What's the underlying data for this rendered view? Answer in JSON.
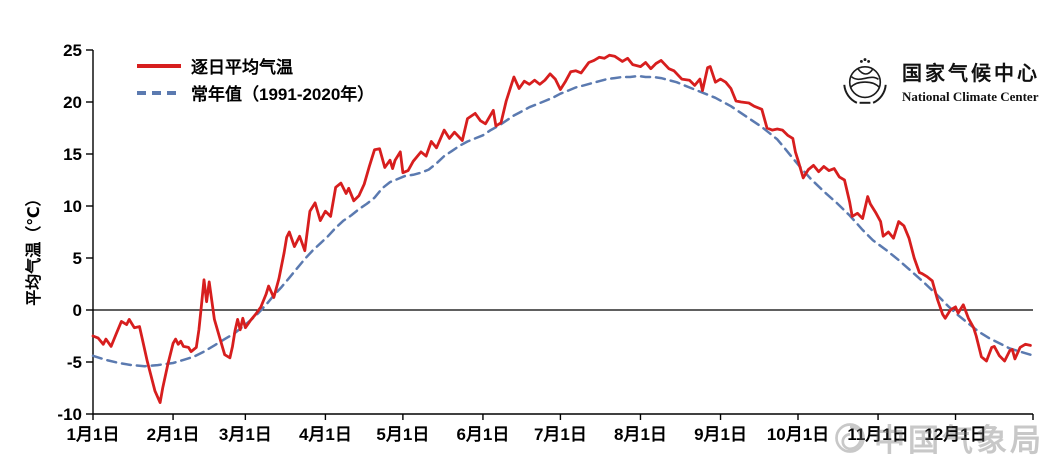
{
  "branding": {
    "name_cn": "国家气候中心",
    "name_en": "National Climate Center"
  },
  "watermark": {
    "text": "中国气象局"
  },
  "chart_data": {
    "type": "line",
    "title": "",
    "xlabel": "",
    "ylabel": "平均气温（℃）",
    "ylim": [
      -10,
      25
    ],
    "y_ticks": [
      25,
      20,
      15,
      10,
      5,
      0,
      -5,
      -10
    ],
    "x_tick_labels": [
      "1月1日",
      "2月1日",
      "3月1日",
      "4月1日",
      "5月1日",
      "6月1日",
      "7月1日",
      "8月1日",
      "9月1日",
      "10月1日",
      "11月1日",
      "12月1日"
    ],
    "x_tick_days": [
      0,
      31,
      59,
      90,
      120,
      151,
      181,
      212,
      243,
      273,
      304,
      334
    ],
    "x_range_days": [
      0,
      364
    ],
    "grid": false,
    "zero_line": true,
    "legend_position": "top-left",
    "series": [
      {
        "name": "逐日平均气温",
        "color": "#d71e1e",
        "line_style": "solid",
        "points": [
          [
            0,
            -2.5
          ],
          [
            2,
            -2.7
          ],
          [
            4,
            -3.3
          ],
          [
            5,
            -2.8
          ],
          [
            7,
            -3.5
          ],
          [
            9,
            -2.3
          ],
          [
            11,
            -1.1
          ],
          [
            13,
            -1.4
          ],
          [
            14,
            -0.9
          ],
          [
            16,
            -1.7
          ],
          [
            18,
            -1.6
          ],
          [
            19,
            -2.7
          ],
          [
            21,
            -4.9
          ],
          [
            24,
            -7.8
          ],
          [
            26,
            -8.9
          ],
          [
            27,
            -7.5
          ],
          [
            29,
            -5.2
          ],
          [
            31,
            -3.2
          ],
          [
            32,
            -2.8
          ],
          [
            33,
            -3.3
          ],
          [
            34,
            -3.0
          ],
          [
            35,
            -3.5
          ],
          [
            37,
            -3.6
          ],
          [
            38,
            -4.0
          ],
          [
            40,
            -3.6
          ],
          [
            41,
            -1.9
          ],
          [
            42,
            0.5
          ],
          [
            43,
            2.9
          ],
          [
            44,
            0.8
          ],
          [
            45,
            2.7
          ],
          [
            47,
            -0.9
          ],
          [
            49,
            -2.6
          ],
          [
            51,
            -4.3
          ],
          [
            53,
            -4.6
          ],
          [
            54,
            -3.5
          ],
          [
            55,
            -2.0
          ],
          [
            56,
            -0.9
          ],
          [
            57,
            -1.9
          ],
          [
            58,
            -0.8
          ],
          [
            59,
            -1.7
          ],
          [
            61,
            -1.0
          ],
          [
            63,
            -0.4
          ],
          [
            65,
            0.3
          ],
          [
            67,
            1.5
          ],
          [
            68,
            2.3
          ],
          [
            70,
            1.2
          ],
          [
            72,
            3.0
          ],
          [
            74,
            5.5
          ],
          [
            75,
            7.0
          ],
          [
            76,
            7.5
          ],
          [
            78,
            6.1
          ],
          [
            80,
            7.1
          ],
          [
            82,
            5.7
          ],
          [
            84,
            9.5
          ],
          [
            86,
            10.3
          ],
          [
            88,
            8.6
          ],
          [
            90,
            9.5
          ],
          [
            92,
            9.0
          ],
          [
            94,
            11.8
          ],
          [
            96,
            12.2
          ],
          [
            98,
            11.2
          ],
          [
            99,
            11.7
          ],
          [
            101,
            10.5
          ],
          [
            103,
            11.0
          ],
          [
            105,
            12.1
          ],
          [
            107,
            13.8
          ],
          [
            109,
            15.4
          ],
          [
            111,
            15.5
          ],
          [
            113,
            13.7
          ],
          [
            115,
            14.4
          ],
          [
            116,
            13.6
          ],
          [
            117,
            14.4
          ],
          [
            119,
            15.2
          ],
          [
            120,
            13.2
          ],
          [
            122,
            13.4
          ],
          [
            124,
            14.3
          ],
          [
            127,
            15.2
          ],
          [
            129,
            14.8
          ],
          [
            131,
            16.2
          ],
          [
            133,
            15.6
          ],
          [
            136,
            17.3
          ],
          [
            138,
            16.5
          ],
          [
            140,
            17.1
          ],
          [
            143,
            16.3
          ],
          [
            145,
            18.4
          ],
          [
            148,
            18.9
          ],
          [
            150,
            18.2
          ],
          [
            152,
            17.9
          ],
          [
            155,
            19.2
          ],
          [
            156,
            17.7
          ],
          [
            158,
            18.0
          ],
          [
            160,
            20.1
          ],
          [
            163,
            22.4
          ],
          [
            165,
            21.3
          ],
          [
            167,
            22.0
          ],
          [
            169,
            21.7
          ],
          [
            171,
            22.1
          ],
          [
            173,
            21.7
          ],
          [
            175,
            22.1
          ],
          [
            177,
            22.7
          ],
          [
            179,
            22.2
          ],
          [
            181,
            21.2
          ],
          [
            183,
            22.0
          ],
          [
            185,
            22.9
          ],
          [
            187,
            23.0
          ],
          [
            189,
            22.8
          ],
          [
            192,
            23.8
          ],
          [
            194,
            24.0
          ],
          [
            196,
            24.3
          ],
          [
            198,
            24.2
          ],
          [
            200,
            24.5
          ],
          [
            202,
            24.4
          ],
          [
            205,
            23.9
          ],
          [
            207,
            24.2
          ],
          [
            209,
            23.6
          ],
          [
            212,
            23.4
          ],
          [
            214,
            23.8
          ],
          [
            216,
            23.2
          ],
          [
            218,
            23.7
          ],
          [
            220,
            24.0
          ],
          [
            223,
            23.2
          ],
          [
            225,
            23.0
          ],
          [
            228,
            22.2
          ],
          [
            231,
            22.1
          ],
          [
            233,
            21.6
          ],
          [
            235,
            22.2
          ],
          [
            236,
            21.1
          ],
          [
            238,
            23.3
          ],
          [
            239,
            23.4
          ],
          [
            241,
            21.9
          ],
          [
            243,
            22.2
          ],
          [
            245,
            21.9
          ],
          [
            247,
            21.3
          ],
          [
            249,
            20.1
          ],
          [
            251,
            20.0
          ],
          [
            254,
            19.9
          ],
          [
            256,
            19.6
          ],
          [
            259,
            19.3
          ],
          [
            261,
            17.5
          ],
          [
            263,
            17.3
          ],
          [
            265,
            17.4
          ],
          [
            267,
            17.3
          ],
          [
            269,
            16.8
          ],
          [
            271,
            16.5
          ],
          [
            272,
            15.2
          ],
          [
            273,
            14.4
          ],
          [
            275,
            12.7
          ],
          [
            277,
            13.5
          ],
          [
            279,
            13.9
          ],
          [
            281,
            13.3
          ],
          [
            283,
            13.8
          ],
          [
            285,
            13.4
          ],
          [
            287,
            13.6
          ],
          [
            289,
            12.8
          ],
          [
            291,
            12.5
          ],
          [
            293,
            10.4
          ],
          [
            294,
            9.0
          ],
          [
            296,
            9.3
          ],
          [
            298,
            8.8
          ],
          [
            300,
            10.9
          ],
          [
            301,
            10.2
          ],
          [
            303,
            9.4
          ],
          [
            305,
            8.5
          ],
          [
            306,
            7.1
          ],
          [
            308,
            7.5
          ],
          [
            310,
            6.9
          ],
          [
            312,
            8.5
          ],
          [
            314,
            8.1
          ],
          [
            316,
            6.9
          ],
          [
            318,
            5.0
          ],
          [
            320,
            3.6
          ],
          [
            321,
            3.5
          ],
          [
            323,
            3.2
          ],
          [
            325,
            2.8
          ],
          [
            327,
            1.0
          ],
          [
            329,
            -0.4
          ],
          [
            330,
            -0.8
          ],
          [
            332,
            0.0
          ],
          [
            334,
            0.3
          ],
          [
            335,
            -0.3
          ],
          [
            337,
            0.5
          ],
          [
            339,
            -0.8
          ],
          [
            341,
            -1.7
          ],
          [
            342,
            -2.5
          ],
          [
            344,
            -4.5
          ],
          [
            346,
            -4.9
          ],
          [
            348,
            -3.6
          ],
          [
            349,
            -3.5
          ],
          [
            351,
            -4.4
          ],
          [
            353,
            -4.9
          ],
          [
            355,
            -3.9
          ],
          [
            356,
            -3.8
          ],
          [
            357,
            -4.7
          ],
          [
            359,
            -3.6
          ],
          [
            361,
            -3.3
          ],
          [
            363,
            -3.4
          ]
        ]
      },
      {
        "name": "常年值（1991-2020年）",
        "color": "#5b7ab0",
        "line_style": "dashed",
        "points": [
          [
            0,
            -4.4
          ],
          [
            5,
            -4.8
          ],
          [
            10,
            -5.1
          ],
          [
            15,
            -5.3
          ],
          [
            20,
            -5.4
          ],
          [
            25,
            -5.3
          ],
          [
            31,
            -5.1
          ],
          [
            35,
            -4.8
          ],
          [
            39,
            -4.5
          ],
          [
            43,
            -4.0
          ],
          [
            47,
            -3.4
          ],
          [
            51,
            -2.8
          ],
          [
            55,
            -2.2
          ],
          [
            58,
            -1.6
          ],
          [
            61,
            -1.0
          ],
          [
            64,
            -0.3
          ],
          [
            67,
            0.5
          ],
          [
            70,
            1.4
          ],
          [
            73,
            2.2
          ],
          [
            76,
            3.1
          ],
          [
            79,
            4.0
          ],
          [
            82,
            4.9
          ],
          [
            85,
            5.7
          ],
          [
            88,
            6.4
          ],
          [
            91,
            7.1
          ],
          [
            94,
            7.9
          ],
          [
            97,
            8.6
          ],
          [
            100,
            9.1
          ],
          [
            103,
            9.7
          ],
          [
            106,
            10.2
          ],
          [
            109,
            10.8
          ],
          [
            112,
            11.7
          ],
          [
            115,
            12.3
          ],
          [
            118,
            12.6
          ],
          [
            121,
            12.9
          ],
          [
            124,
            13.0
          ],
          [
            127,
            13.2
          ],
          [
            130,
            13.5
          ],
          [
            133,
            14.1
          ],
          [
            136,
            14.8
          ],
          [
            139,
            15.3
          ],
          [
            142,
            15.8
          ],
          [
            145,
            16.2
          ],
          [
            148,
            16.5
          ],
          [
            151,
            16.8
          ],
          [
            154,
            17.3
          ],
          [
            157,
            17.7
          ],
          [
            160,
            18.2
          ],
          [
            163,
            18.7
          ],
          [
            166,
            19.1
          ],
          [
            169,
            19.5
          ],
          [
            172,
            19.8
          ],
          [
            175,
            20.1
          ],
          [
            178,
            20.4
          ],
          [
            181,
            20.8
          ],
          [
            184,
            21.1
          ],
          [
            187,
            21.4
          ],
          [
            190,
            21.6
          ],
          [
            193,
            21.8
          ],
          [
            196,
            22.0
          ],
          [
            199,
            22.2
          ],
          [
            202,
            22.3
          ],
          [
            205,
            22.4
          ],
          [
            208,
            22.4
          ],
          [
            211,
            22.5
          ],
          [
            214,
            22.4
          ],
          [
            217,
            22.4
          ],
          [
            220,
            22.3
          ],
          [
            223,
            22.1
          ],
          [
            226,
            21.9
          ],
          [
            229,
            21.6
          ],
          [
            232,
            21.3
          ],
          [
            235,
            21.0
          ],
          [
            238,
            20.7
          ],
          [
            241,
            20.4
          ],
          [
            244,
            20.0
          ],
          [
            247,
            19.6
          ],
          [
            250,
            19.1
          ],
          [
            253,
            18.6
          ],
          [
            256,
            18.1
          ],
          [
            259,
            17.6
          ],
          [
            262,
            17.0
          ],
          [
            265,
            16.4
          ],
          [
            268,
            15.5
          ],
          [
            271,
            14.6
          ],
          [
            274,
            13.7
          ],
          [
            278,
            12.6
          ],
          [
            283,
            11.4
          ],
          [
            288,
            10.3
          ],
          [
            293,
            9.1
          ],
          [
            298,
            7.7
          ],
          [
            302,
            6.7
          ],
          [
            307,
            5.8
          ],
          [
            312,
            4.8
          ],
          [
            317,
            3.7
          ],
          [
            322,
            2.6
          ],
          [
            327,
            1.4
          ],
          [
            331,
            0.4
          ],
          [
            335,
            -0.5
          ],
          [
            339,
            -1.3
          ],
          [
            343,
            -2.1
          ],
          [
            347,
            -2.7
          ],
          [
            351,
            -3.2
          ],
          [
            355,
            -3.7
          ],
          [
            359,
            -4.0
          ],
          [
            363,
            -4.3
          ]
        ]
      }
    ]
  }
}
